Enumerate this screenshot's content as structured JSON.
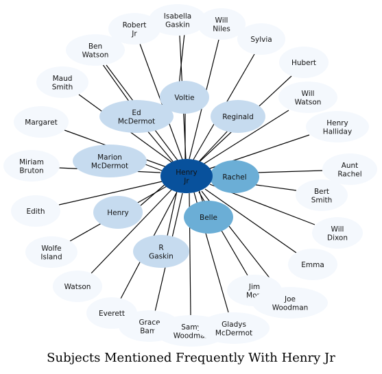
{
  "title": "Subjects Mentioned Frequently With Henry Jr",
  "colors": {
    "outer": "#f4f8fd",
    "light": "#c6dbef",
    "medium": "#6baed6",
    "dark": "#08519c",
    "edge": "#000000"
  },
  "center": {
    "id": "henry-jr",
    "label": [
      "Henry",
      "Jr"
    ],
    "tier": "dark"
  },
  "nodes": [
    {
      "id": "isabella-gaskin",
      "label": [
        "Isabella",
        "Gaskin"
      ],
      "tier": "outer"
    },
    {
      "id": "will-niles",
      "label": [
        "Will",
        "Niles"
      ],
      "tier": "outer"
    },
    {
      "id": "robert-jr",
      "label": [
        "Robert",
        "Jr"
      ],
      "tier": "outer"
    },
    {
      "id": "sylvia",
      "label": [
        "Sylvia"
      ],
      "tier": "outer"
    },
    {
      "id": "ben-watson",
      "label": [
        "Ben",
        "Watson"
      ],
      "tier": "outer"
    },
    {
      "id": "hubert",
      "label": [
        "Hubert"
      ],
      "tier": "outer"
    },
    {
      "id": "maud-smith",
      "label": [
        "Maud",
        "Smith"
      ],
      "tier": "outer"
    },
    {
      "id": "will-watson",
      "label": [
        "Will",
        "Watson"
      ],
      "tier": "outer"
    },
    {
      "id": "margaret",
      "label": [
        "Margaret"
      ],
      "tier": "outer"
    },
    {
      "id": "henry-halliday",
      "label": [
        "Henry",
        "Halliday"
      ],
      "tier": "outer"
    },
    {
      "id": "miriam-bruton",
      "label": [
        "Miriam",
        "Bruton"
      ],
      "tier": "outer"
    },
    {
      "id": "aunt-rachel",
      "label": [
        "Aunt",
        "Rachel"
      ],
      "tier": "outer"
    },
    {
      "id": "bert-smith",
      "label": [
        "Bert",
        "Smith"
      ],
      "tier": "outer"
    },
    {
      "id": "edith",
      "label": [
        "Edith"
      ],
      "tier": "outer"
    },
    {
      "id": "will-dixon",
      "label": [
        "Will",
        "Dixon"
      ],
      "tier": "outer"
    },
    {
      "id": "wolfe-island",
      "label": [
        "Wolfe",
        "Island"
      ],
      "tier": "outer"
    },
    {
      "id": "emma",
      "label": [
        "Emma"
      ],
      "tier": "outer"
    },
    {
      "id": "watson",
      "label": [
        "Watson"
      ],
      "tier": "outer"
    },
    {
      "id": "jim-morr",
      "label": [
        "Jim",
        "Morr"
      ],
      "tier": "outer"
    },
    {
      "id": "everett",
      "label": [
        "Everett"
      ],
      "tier": "outer"
    },
    {
      "id": "joe-woodman",
      "label": [
        "Joe",
        "Woodman"
      ],
      "tier": "outer"
    },
    {
      "id": "grace-bamf",
      "label": [
        "Grace",
        "Bamf"
      ],
      "tier": "outer"
    },
    {
      "id": "samy-woodman",
      "label": [
        "Samy",
        "Woodman"
      ],
      "tier": "outer"
    },
    {
      "id": "gladys-mcdermot",
      "label": [
        "Gladys",
        "McDermot"
      ],
      "tier": "outer"
    },
    {
      "id": "voltie",
      "label": [
        "Voltie"
      ],
      "tier": "light"
    },
    {
      "id": "ed-mcdermot",
      "label": [
        "Ed",
        "McDermot"
      ],
      "tier": "light"
    },
    {
      "id": "reginald",
      "label": [
        "Reginald"
      ],
      "tier": "light"
    },
    {
      "id": "marion-mcdermot",
      "label": [
        "Marion",
        "McDermot"
      ],
      "tier": "light"
    },
    {
      "id": "henry",
      "label": [
        "Henry"
      ],
      "tier": "light"
    },
    {
      "id": "r-gaskin",
      "label": [
        "R",
        "Gaskin"
      ],
      "tier": "light"
    },
    {
      "id": "rachel",
      "label": [
        "Rachel"
      ],
      "tier": "medium"
    },
    {
      "id": "belle",
      "label": [
        "Belle"
      ],
      "tier": "medium"
    }
  ]
}
